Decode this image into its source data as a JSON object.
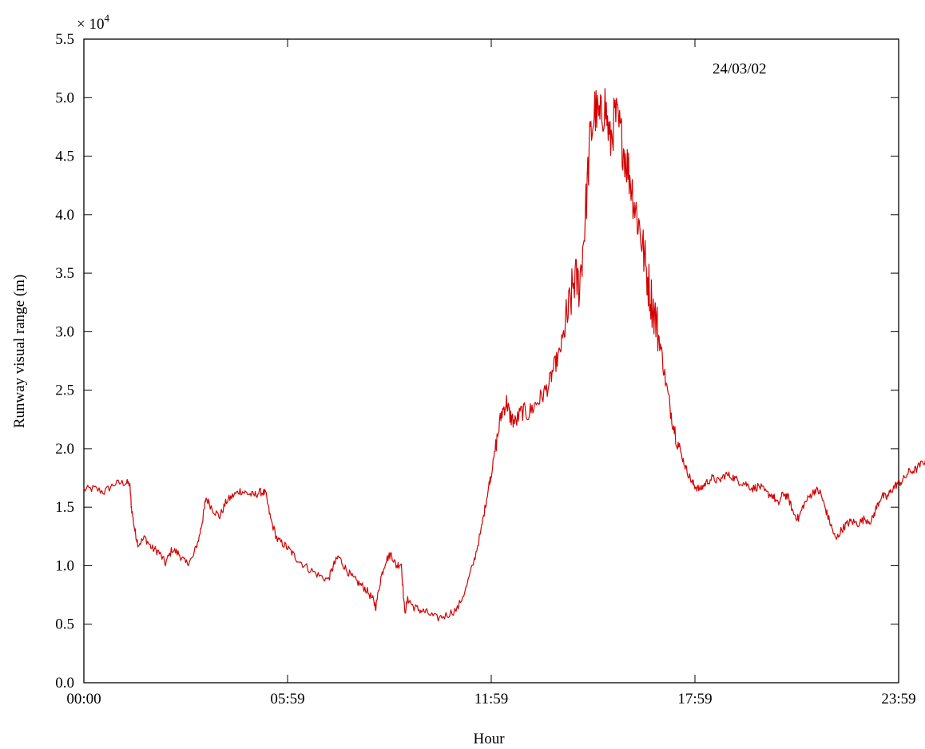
{
  "chart_data": {
    "type": "line",
    "title": "",
    "xlabel": "Hour",
    "ylabel": "Runway visual range (m)",
    "y_multiplier_label": "× 10",
    "y_multiplier_exponent": "4",
    "annotation": "24/03/02",
    "x_unit": "hours since 00:00",
    "xlim": [
      0,
      24
    ],
    "ylim": [
      0,
      5.5
    ],
    "x_ticks": [
      {
        "value": 0,
        "label": "00:00"
      },
      {
        "value": 6,
        "label": "05:59"
      },
      {
        "value": 12,
        "label": "11:59"
      },
      {
        "value": 18,
        "label": "17:59"
      },
      {
        "value": 24,
        "label": "23:59"
      }
    ],
    "y_ticks": [
      {
        "value": 0.0,
        "label": "0.0"
      },
      {
        "value": 0.5,
        "label": "0.5"
      },
      {
        "value": 1.0,
        "label": "1.0"
      },
      {
        "value": 1.5,
        "label": "1.5"
      },
      {
        "value": 2.0,
        "label": "2.0"
      },
      {
        "value": 2.5,
        "label": "2.5"
      },
      {
        "value": 3.0,
        "label": "3.0"
      },
      {
        "value": 3.5,
        "label": "3.5"
      },
      {
        "value": 4.0,
        "label": "4.0"
      },
      {
        "value": 4.5,
        "label": "4.5"
      },
      {
        "value": 5.0,
        "label": "5.0"
      },
      {
        "value": 5.5,
        "label": "5.5"
      }
    ],
    "grid": false,
    "series": [
      {
        "color": "#d40000",
        "points": [
          [
            0.0,
            1.65
          ],
          [
            0.3,
            1.66
          ],
          [
            0.6,
            1.63
          ],
          [
            0.9,
            1.7
          ],
          [
            1.2,
            1.71
          ],
          [
            1.35,
            1.7
          ],
          [
            1.4,
            1.5
          ],
          [
            1.5,
            1.3
          ],
          [
            1.6,
            1.18
          ],
          [
            1.8,
            1.24
          ],
          [
            2.0,
            1.15
          ],
          [
            2.2,
            1.12
          ],
          [
            2.4,
            1.02
          ],
          [
            2.6,
            1.14
          ],
          [
            2.8,
            1.1
          ],
          [
            3.0,
            1.02
          ],
          [
            3.2,
            1.06
          ],
          [
            3.4,
            1.25
          ],
          [
            3.5,
            1.4
          ],
          [
            3.6,
            1.58
          ],
          [
            3.8,
            1.48
          ],
          [
            4.0,
            1.42
          ],
          [
            4.2,
            1.55
          ],
          [
            4.4,
            1.6
          ],
          [
            4.6,
            1.64
          ],
          [
            4.8,
            1.62
          ],
          [
            5.0,
            1.6
          ],
          [
            5.2,
            1.63
          ],
          [
            5.35,
            1.62
          ],
          [
            5.5,
            1.4
          ],
          [
            5.7,
            1.22
          ],
          [
            5.9,
            1.18
          ],
          [
            6.1,
            1.12
          ],
          [
            6.3,
            1.05
          ],
          [
            6.6,
            0.98
          ],
          [
            6.9,
            0.92
          ],
          [
            7.2,
            0.88
          ],
          [
            7.35,
            1.0
          ],
          [
            7.5,
            1.08
          ],
          [
            7.7,
            0.98
          ],
          [
            7.9,
            0.9
          ],
          [
            8.1,
            0.85
          ],
          [
            8.3,
            0.8
          ],
          [
            8.5,
            0.72
          ],
          [
            8.6,
            0.65
          ],
          [
            8.75,
            0.9
          ],
          [
            8.9,
            1.05
          ],
          [
            9.05,
            1.1
          ],
          [
            9.2,
            1.0
          ],
          [
            9.35,
            1.02
          ],
          [
            9.45,
            0.6
          ],
          [
            9.55,
            0.72
          ],
          [
            9.7,
            0.65
          ],
          [
            9.9,
            0.62
          ],
          [
            10.1,
            0.6
          ],
          [
            10.4,
            0.55
          ],
          [
            10.7,
            0.58
          ],
          [
            11.0,
            0.63
          ],
          [
            11.25,
            0.8
          ],
          [
            11.5,
            1.05
          ],
          [
            11.7,
            1.3
          ],
          [
            11.85,
            1.55
          ],
          [
            11.95,
            1.72
          ],
          [
            12.0,
            1.78
          ],
          [
            12.15,
            2.05
          ],
          [
            12.3,
            2.3
          ],
          [
            12.45,
            2.4
          ],
          [
            12.55,
            2.28
          ],
          [
            12.7,
            2.22
          ],
          [
            12.9,
            2.32
          ],
          [
            13.1,
            2.3
          ],
          [
            13.3,
            2.38
          ],
          [
            13.5,
            2.45
          ],
          [
            13.7,
            2.55
          ],
          [
            13.85,
            2.7
          ],
          [
            14.0,
            2.8
          ],
          [
            14.15,
            3.0
          ],
          [
            14.3,
            3.2
          ],
          [
            14.45,
            3.45
          ],
          [
            14.6,
            3.4
          ],
          [
            14.75,
            3.9
          ],
          [
            14.9,
            4.6
          ],
          [
            15.05,
            4.9
          ],
          [
            15.2,
            4.8
          ],
          [
            15.35,
            4.95
          ],
          [
            15.5,
            4.6
          ],
          [
            15.65,
            4.85
          ],
          [
            15.8,
            4.7
          ],
          [
            15.95,
            4.5
          ],
          [
            16.1,
            4.3
          ],
          [
            16.25,
            4.05
          ],
          [
            16.4,
            3.85
          ],
          [
            16.55,
            3.55
          ],
          [
            16.7,
            3.3
          ],
          [
            16.85,
            3.1
          ],
          [
            17.0,
            2.85
          ],
          [
            17.15,
            2.55
          ],
          [
            17.3,
            2.3
          ],
          [
            17.45,
            2.1
          ],
          [
            17.6,
            1.95
          ],
          [
            17.75,
            1.82
          ],
          [
            17.9,
            1.72
          ],
          [
            18.0,
            1.68
          ],
          [
            18.15,
            1.65
          ],
          [
            18.3,
            1.7
          ],
          [
            18.5,
            1.75
          ],
          [
            18.7,
            1.72
          ],
          [
            18.9,
            1.78
          ],
          [
            19.1,
            1.76
          ],
          [
            19.3,
            1.72
          ],
          [
            19.5,
            1.7
          ],
          [
            19.7,
            1.66
          ],
          [
            19.9,
            1.68
          ],
          [
            20.1,
            1.62
          ],
          [
            20.3,
            1.6
          ],
          [
            20.45,
            1.52
          ],
          [
            20.6,
            1.62
          ],
          [
            20.75,
            1.58
          ],
          [
            20.9,
            1.45
          ],
          [
            21.05,
            1.4
          ],
          [
            21.2,
            1.52
          ],
          [
            21.4,
            1.6
          ],
          [
            21.55,
            1.65
          ],
          [
            21.7,
            1.62
          ],
          [
            21.85,
            1.48
          ],
          [
            22.0,
            1.35
          ],
          [
            22.15,
            1.22
          ],
          [
            22.3,
            1.3
          ],
          [
            22.45,
            1.35
          ],
          [
            22.6,
            1.38
          ],
          [
            22.8,
            1.36
          ],
          [
            23.0,
            1.4
          ],
          [
            23.2,
            1.38
          ],
          [
            23.35,
            1.5
          ],
          [
            23.5,
            1.6
          ],
          [
            23.65,
            1.58
          ],
          [
            23.8,
            1.65
          ],
          [
            23.95,
            1.7
          ],
          [
            24.1,
            1.72
          ],
          [
            24.3,
            1.8
          ],
          [
            24.5,
            1.82
          ],
          [
            24.7,
            1.88
          ],
          [
            24.9,
            1.92
          ],
          [
            25.1,
            1.9
          ],
          [
            25.3,
            1.87
          ],
          [
            25.5,
            1.85
          ],
          [
            25.7,
            1.84
          ],
          [
            25.9,
            1.85
          ]
        ]
      }
    ]
  }
}
